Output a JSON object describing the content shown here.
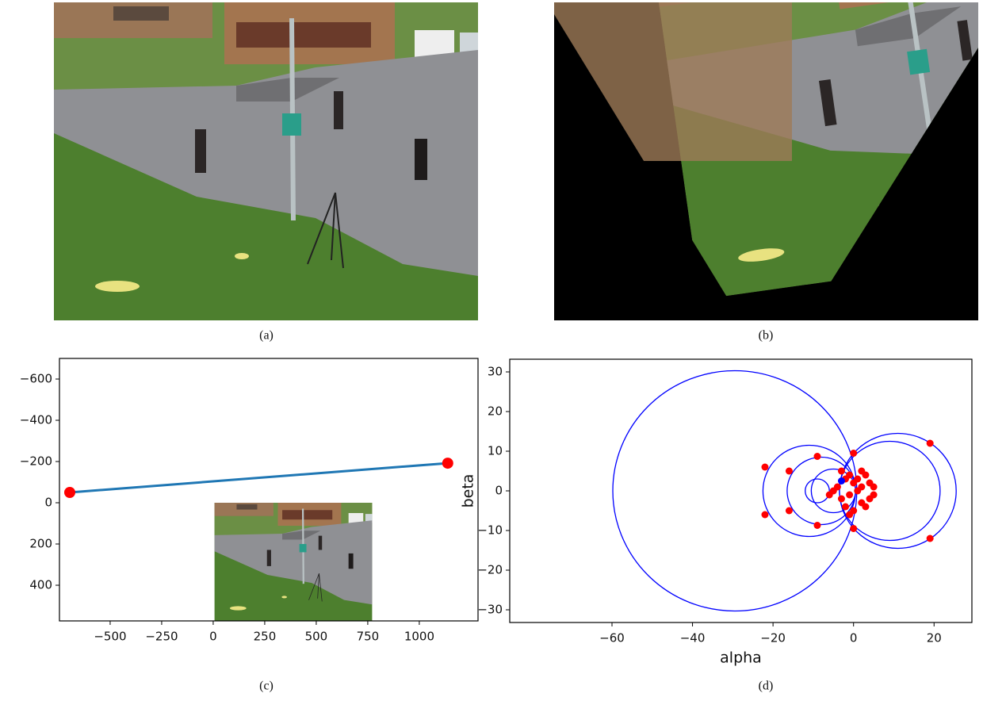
{
  "captions": [
    "(a)",
    "(b)",
    "(c)",
    "(d)"
  ],
  "chart_data": [
    {
      "type": "line",
      "xlim": [
        -746,
        1285
      ],
      "ylim": [
        573,
        -700
      ],
      "xticks": [
        {
          "value": -500,
          "label": "−500"
        },
        {
          "value": -250,
          "label": "−250"
        },
        0,
        250,
        500,
        750,
        1000
      ],
      "yticks": [
        {
          "value": -600,
          "label": "−600"
        },
        {
          "value": -400,
          "label": "−400"
        },
        {
          "value": -200,
          "label": "−200"
        },
        0,
        200,
        400
      ],
      "series": [
        {
          "color": "#1f77b4",
          "marker_color": "#ff0000",
          "x": [
            -696,
            1138
          ],
          "y": [
            -50,
            -192
          ]
        }
      ]
    },
    {
      "type": "scatter",
      "xlabel": "alpha",
      "ylabel": "beta",
      "xlim": [
        -85.4,
        29.4
      ],
      "ylim": [
        -33.2,
        33.2
      ],
      "xticks": [
        {
          "value": -60,
          "label": "−60"
        },
        {
          "value": -40,
          "label": "−40"
        },
        {
          "value": -20,
          "label": "−20"
        },
        0,
        20
      ],
      "yticks": [
        {
          "value": -30,
          "label": "−30"
        },
        {
          "value": -20,
          "label": "−20"
        },
        {
          "value": -10,
          "label": "−10"
        },
        0,
        10,
        20,
        30
      ],
      "circles": {
        "color": "#0000ff",
        "cx": [
          -29.5,
          11,
          9,
          -11,
          -8,
          -5,
          -9
        ],
        "cy": [
          0,
          0,
          0,
          0,
          0,
          0,
          0
        ],
        "r": [
          30.3,
          14.5,
          12.5,
          11.5,
          8.5,
          5.5,
          3
        ]
      },
      "series": [
        {
          "color": "#ff0000",
          "x": [
            19,
            19,
            -22,
            -22,
            -16,
            -16,
            -9,
            -9,
            0,
            0,
            -3,
            -2,
            -1,
            0,
            1,
            2,
            3,
            4,
            5,
            -4,
            -5,
            -3,
            -1,
            1,
            2,
            4,
            -2,
            0,
            3,
            -6,
            5,
            2,
            -1
          ],
          "y": [
            12,
            -12,
            6,
            -6,
            5,
            -5,
            8.7,
            -8.7,
            9.5,
            -9.5,
            5,
            3,
            4,
            2,
            3,
            5,
            4,
            2,
            1,
            1,
            0,
            -2,
            -1,
            0,
            -3,
            -2,
            -4,
            -5,
            -4,
            -1,
            -1,
            1,
            -6
          ]
        },
        {
          "color": "#0000ff",
          "x": [
            -3
          ],
          "y": [
            2.5
          ]
        }
      ]
    }
  ]
}
